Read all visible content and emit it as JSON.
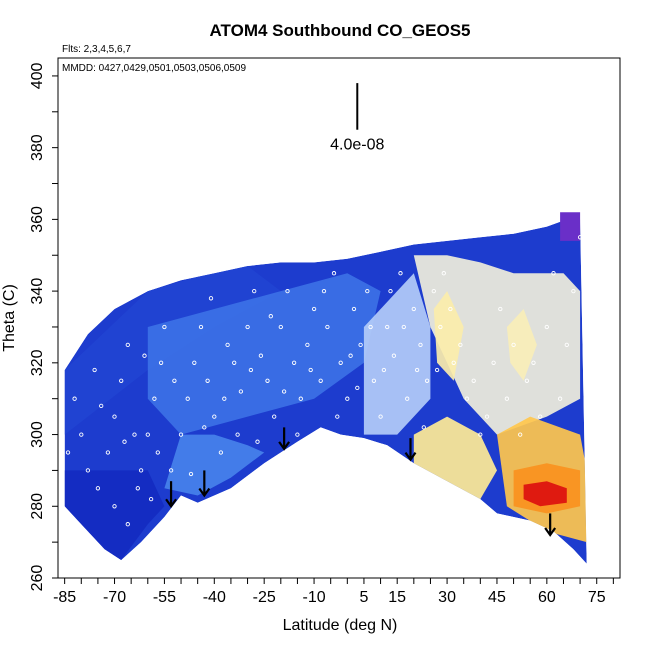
{
  "chart_data": {
    "type": "heatmap",
    "title": "ATOM4 Southbound CO_GEOS5",
    "flights_label": "Flts: 2,3,4,5,6,7",
    "dates_label": "MMDD: 0427,0429,0501,0503,0506,0509",
    "xlabel": "Latitude (deg N)",
    "ylabel": "Theta (C)",
    "xlim": [
      -87,
      82
    ],
    "ylim": [
      260,
      405
    ],
    "x_tick_labels": [
      "-85",
      "-70",
      "-55",
      "-40",
      "-25",
      "-10",
      "5",
      "15",
      "30",
      "45",
      "60",
      "75"
    ],
    "y_tick_labels": [
      "260",
      "280",
      "300",
      "320",
      "340",
      "360",
      "380",
      "400"
    ],
    "scale_bar_label": "4.0e-08",
    "scale_bar": {
      "x": 3,
      "y_top": 398,
      "y_bottom": 385
    },
    "arrows": [
      {
        "lat": -53,
        "theta_top": 287,
        "theta_bottom": 280
      },
      {
        "lat": -43,
        "theta_top": 290,
        "theta_bottom": 283
      },
      {
        "lat": -19,
        "theta_top": 302,
        "theta_bottom": 296
      },
      {
        "lat": 19,
        "theta_top": 299,
        "theta_bottom": 293
      },
      {
        "lat": 61,
        "theta_top": 278,
        "theta_bottom": 272
      }
    ],
    "colors": {
      "low": "#0c1fb8",
      "mid_low": "#3a78e0",
      "mid": "#e9f1ff",
      "mid_high": "#ffe07a",
      "high": "#e01010",
      "top_purple": "#6a2fc8"
    },
    "curtain_top": [
      [
        -85,
        318
      ],
      [
        -78,
        328
      ],
      [
        -70,
        335
      ],
      [
        -60,
        340
      ],
      [
        -50,
        343
      ],
      [
        -40,
        345
      ],
      [
        -30,
        347
      ],
      [
        -20,
        348
      ],
      [
        -10,
        348
      ],
      [
        0,
        349
      ],
      [
        10,
        351
      ],
      [
        20,
        353
      ],
      [
        30,
        354
      ],
      [
        40,
        355
      ],
      [
        50,
        356
      ],
      [
        60,
        358
      ],
      [
        66,
        360
      ],
      [
        70,
        360
      ]
    ],
    "curtain_bottom": [
      [
        -85,
        280
      ],
      [
        -80,
        275
      ],
      [
        -73,
        268
      ],
      [
        -68,
        265
      ],
      [
        -62,
        270
      ],
      [
        -55,
        277
      ],
      [
        -50,
        283
      ],
      [
        -45,
        281
      ],
      [
        -35,
        285
      ],
      [
        -25,
        292
      ],
      [
        -15,
        298
      ],
      [
        -8,
        302
      ],
      [
        -2,
        300
      ],
      [
        5,
        299
      ],
      [
        12,
        297
      ],
      [
        20,
        292
      ],
      [
        30,
        287
      ],
      [
        40,
        282
      ],
      [
        45,
        278
      ],
      [
        55,
        276
      ],
      [
        62,
        273
      ],
      [
        68,
        268
      ],
      [
        72,
        264
      ]
    ],
    "regions": [
      {
        "value": 0.05,
        "poly": [
          [
            -85,
            290
          ],
          [
            -60,
            290
          ],
          [
            -55,
            280
          ],
          [
            -60,
            275
          ],
          [
            -68,
            265
          ],
          [
            -80,
            272
          ],
          [
            -85,
            280
          ]
        ]
      },
      {
        "value": 0.15,
        "poly": [
          [
            -85,
            318
          ],
          [
            -60,
            340
          ],
          [
            -45,
            344
          ],
          [
            -30,
            347
          ],
          [
            -20,
            340
          ],
          [
            -40,
            330
          ],
          [
            -60,
            318
          ],
          [
            -85,
            300
          ]
        ]
      },
      {
        "value": 0.3,
        "poly": [
          [
            -60,
            330
          ],
          [
            -40,
            335
          ],
          [
            -20,
            340
          ],
          [
            0,
            345
          ],
          [
            10,
            340
          ],
          [
            5,
            320
          ],
          [
            -10,
            310
          ],
          [
            -30,
            305
          ],
          [
            -50,
            300
          ],
          [
            -60,
            310
          ]
        ]
      },
      {
        "value": 0.35,
        "poly": [
          [
            -50,
            300
          ],
          [
            -40,
            300
          ],
          [
            -30,
            297
          ],
          [
            -25,
            295
          ],
          [
            -35,
            288
          ],
          [
            -45,
            283
          ],
          [
            -55,
            285
          ]
        ]
      },
      {
        "value": 0.45,
        "poly": [
          [
            5,
            330
          ],
          [
            15,
            340
          ],
          [
            20,
            345
          ],
          [
            25,
            330
          ],
          [
            25,
            310
          ],
          [
            15,
            300
          ],
          [
            5,
            300
          ]
        ]
      },
      {
        "value": 0.55,
        "poly": [
          [
            20,
            350
          ],
          [
            30,
            350
          ],
          [
            40,
            348
          ],
          [
            50,
            345
          ],
          [
            65,
            345
          ],
          [
            70,
            340
          ],
          [
            70,
            310
          ],
          [
            60,
            305
          ],
          [
            45,
            300
          ],
          [
            35,
            310
          ],
          [
            30,
            320
          ],
          [
            25,
            330
          ]
        ]
      },
      {
        "value": 0.65,
        "poly": [
          [
            20,
            300
          ],
          [
            30,
            305
          ],
          [
            40,
            300
          ],
          [
            45,
            290
          ],
          [
            40,
            282
          ],
          [
            30,
            287
          ],
          [
            20,
            292
          ]
        ]
      },
      {
        "value": 0.75,
        "poly": [
          [
            45,
            300
          ],
          [
            55,
            305
          ],
          [
            70,
            300
          ],
          [
            72,
            290
          ],
          [
            72,
            270
          ],
          [
            60,
            273
          ],
          [
            48,
            280
          ]
        ]
      },
      {
        "value": 0.85,
        "poly": [
          [
            50,
            290
          ],
          [
            60,
            292
          ],
          [
            70,
            290
          ],
          [
            70,
            280
          ],
          [
            60,
            278
          ],
          [
            50,
            280
          ]
        ]
      },
      {
        "value": 1.0,
        "poly": [
          [
            53,
            286
          ],
          [
            60,
            287
          ],
          [
            66,
            285
          ],
          [
            66,
            281
          ],
          [
            58,
            280
          ],
          [
            53,
            282
          ]
        ]
      },
      {
        "value": 0.62,
        "poly": [
          [
            26,
            335
          ],
          [
            30,
            340
          ],
          [
            35,
            330
          ],
          [
            32,
            315
          ],
          [
            27,
            320
          ]
        ]
      },
      {
        "value": 0.6,
        "poly": [
          [
            48,
            330
          ],
          [
            53,
            335
          ],
          [
            57,
            325
          ],
          [
            53,
            315
          ],
          [
            49,
            320
          ]
        ]
      }
    ],
    "observations": [
      [
        -82,
        310
      ],
      [
        -80,
        300
      ],
      [
        -78,
        290
      ],
      [
        -75,
        285
      ],
      [
        -72,
        295
      ],
      [
        -70,
        305
      ],
      [
        -68,
        315
      ],
      [
        -66,
        325
      ],
      [
        -64,
        300
      ],
      [
        -62,
        290
      ],
      [
        -70,
        280
      ],
      [
        -66,
        275
      ],
      [
        -63,
        285
      ],
      [
        -60,
        300
      ],
      [
        -58,
        310
      ],
      [
        -56,
        320
      ],
      [
        -55,
        330
      ],
      [
        -57,
        295
      ],
      [
        -53,
        290
      ],
      [
        -50,
        300
      ],
      [
        -48,
        310
      ],
      [
        -46,
        320
      ],
      [
        -44,
        330
      ],
      [
        -42,
        315
      ],
      [
        -40,
        305
      ],
      [
        -38,
        295
      ],
      [
        -36,
        325
      ],
      [
        -34,
        320
      ],
      [
        -32,
        312
      ],
      [
        -30,
        330
      ],
      [
        -28,
        340
      ],
      [
        -26,
        322
      ],
      [
        -24,
        315
      ],
      [
        -22,
        305
      ],
      [
        -20,
        330
      ],
      [
        -18,
        340
      ],
      [
        -16,
        320
      ],
      [
        -14,
        310
      ],
      [
        -12,
        325
      ],
      [
        -10,
        335
      ],
      [
        -8,
        315
      ],
      [
        -6,
        330
      ],
      [
        -4,
        345
      ],
      [
        -2,
        320
      ],
      [
        0,
        310
      ],
      [
        2,
        335
      ],
      [
        4,
        325
      ],
      [
        6,
        340
      ],
      [
        8,
        315
      ],
      [
        10,
        305
      ],
      [
        12,
        330
      ],
      [
        14,
        322
      ],
      [
        16,
        345
      ],
      [
        18,
        310
      ],
      [
        20,
        335
      ],
      [
        22,
        325
      ],
      [
        24,
        315
      ],
      [
        26,
        340
      ],
      [
        28,
        330
      ],
      [
        32,
        320
      ],
      [
        36,
        310
      ],
      [
        40,
        300
      ],
      [
        44,
        320
      ],
      [
        48,
        310
      ],
      [
        52,
        300
      ],
      [
        56,
        320
      ],
      [
        60,
        330
      ],
      [
        64,
        310
      ],
      [
        68,
        340
      ],
      [
        70,
        355
      ],
      [
        -84,
        295
      ],
      [
        -76,
        318
      ],
      [
        -74,
        308
      ],
      [
        -67,
        298
      ],
      [
        -61,
        322
      ],
      [
        -59,
        282
      ],
      [
        -52,
        315
      ],
      [
        -47,
        289
      ],
      [
        -43,
        302
      ],
      [
        -41,
        338
      ],
      [
        -37,
        310
      ],
      [
        -33,
        300
      ],
      [
        -29,
        318
      ],
      [
        -27,
        298
      ],
      [
        -23,
        333
      ],
      [
        -19,
        312
      ],
      [
        -15,
        300
      ],
      [
        -11,
        318
      ],
      [
        -7,
        340
      ],
      [
        -3,
        305
      ],
      [
        1,
        322
      ],
      [
        3,
        313
      ],
      [
        7,
        330
      ],
      [
        11,
        318
      ],
      [
        13,
        340
      ],
      [
        17,
        330
      ],
      [
        21,
        318
      ],
      [
        23,
        302
      ],
      [
        27,
        318
      ],
      [
        29,
        345
      ],
      [
        31,
        335
      ],
      [
        34,
        325
      ],
      [
        38,
        315
      ],
      [
        42,
        305
      ],
      [
        46,
        335
      ],
      [
        50,
        325
      ],
      [
        54,
        315
      ],
      [
        58,
        305
      ],
      [
        62,
        345
      ],
      [
        66,
        325
      ]
    ]
  }
}
